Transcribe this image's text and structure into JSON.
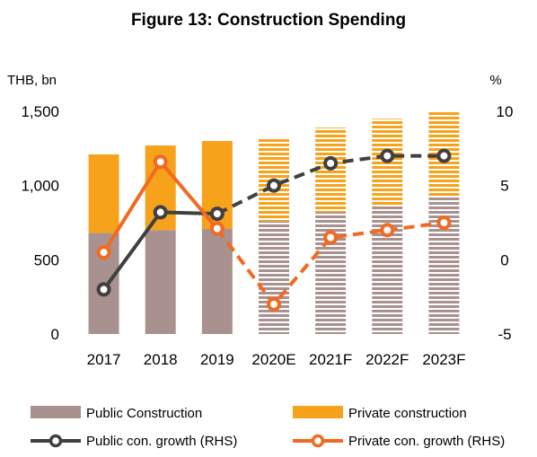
{
  "chart_data": {
    "type": "bar",
    "title": "Figure 13: Construction Spending",
    "left_unit": "THB, bn",
    "right_unit": "%",
    "categories": [
      "2017",
      "2018",
      "2019",
      "2020E",
      "2021F",
      "2022F",
      "2023F"
    ],
    "ylim_left": [
      0,
      1500
    ],
    "yticks_left": [
      "0",
      "500",
      "1,000",
      "1,500"
    ],
    "ylim_right": [
      -5,
      10
    ],
    "yticks_right": [
      "-5",
      "0",
      "5",
      "10"
    ],
    "forecast_start_index": 3,
    "bars": [
      {
        "name": "Public Construction",
        "values": [
          680,
          700,
          710,
          760,
          820,
          860,
          930
        ],
        "color": "#a8918f"
      },
      {
        "name": "Private construction",
        "values": [
          530,
          570,
          590,
          560,
          570,
          590,
          570
        ],
        "color": "#f7a21b"
      }
    ],
    "lines": [
      {
        "name": "Public con. growth (RHS)",
        "values": [
          -2.0,
          3.2,
          3.1,
          5.0,
          6.5,
          7.0,
          7.0
        ],
        "color": "#404040"
      },
      {
        "name": "Private con. growth (RHS)",
        "values": [
          0.5,
          6.6,
          2.1,
          -3.0,
          1.5,
          2.0,
          2.5
        ],
        "color": "#f26a21"
      }
    ],
    "grid": false,
    "legend_position": "bottom"
  }
}
